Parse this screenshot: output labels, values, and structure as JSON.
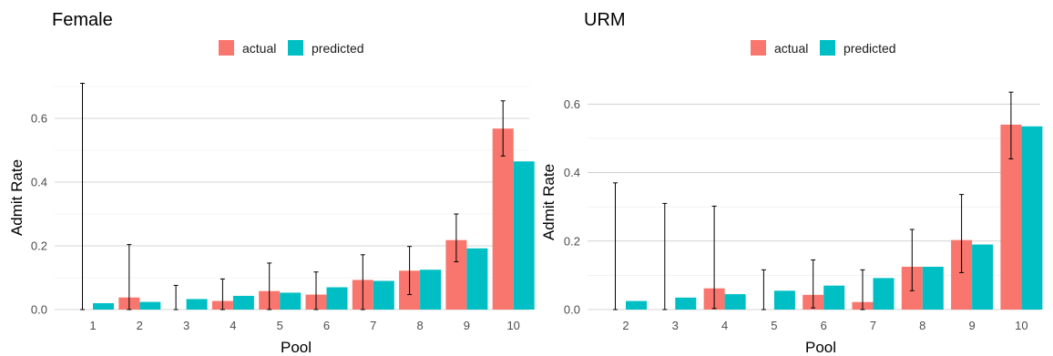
{
  "colors": {
    "actual": "#F8766D",
    "predicted": "#00BFC4"
  },
  "legend": {
    "items": [
      "actual",
      "predicted"
    ]
  },
  "chart_data": [
    {
      "type": "bar",
      "title": "Female",
      "xlabel": "Pool",
      "ylabel": "Admit Rate",
      "ylim": [
        0,
        0.72
      ],
      "y_ticks": [
        0.0,
        0.2,
        0.4,
        0.6
      ],
      "y_tick_labels": [
        "0.0",
        "0.2",
        "0.4",
        "0.6"
      ],
      "grid": true,
      "legend_position": "top",
      "categories": [
        "1",
        "2",
        "3",
        "4",
        "5",
        "6",
        "7",
        "8",
        "9",
        "10"
      ],
      "series": [
        {
          "name": "actual",
          "values": [
            0.0,
            0.038,
            0.0,
            0.027,
            0.058,
            0.047,
            0.093,
            0.122,
            0.218,
            0.568
          ]
        },
        {
          "name": "predicted",
          "values": [
            0.02,
            0.024,
            0.033,
            0.043,
            0.053,
            0.07,
            0.09,
            0.125,
            0.192,
            0.465
          ]
        }
      ],
      "error_bars": {
        "lower": [
          0.0,
          0.0,
          0.0,
          0.0,
          0.0,
          0.0,
          0.0,
          0.047,
          0.15,
          0.482
        ],
        "upper": [
          0.71,
          0.204,
          0.076,
          0.096,
          0.146,
          0.118,
          0.172,
          0.198,
          0.3,
          0.655
        ]
      }
    },
    {
      "type": "bar",
      "title": "URM",
      "xlabel": "Pool",
      "ylabel": "Admit Rate",
      "ylim": [
        0,
        0.67
      ],
      "y_ticks": [
        0.0,
        0.2,
        0.4,
        0.6
      ],
      "y_tick_labels": [
        "0.0",
        "0.2",
        "0.4",
        "0.6"
      ],
      "grid": true,
      "legend_position": "top",
      "categories": [
        "2",
        "3",
        "4",
        "5",
        "6",
        "7",
        "8",
        "9",
        "10"
      ],
      "series": [
        {
          "name": "actual",
          "values": [
            0.0,
            0.0,
            0.062,
            0.0,
            0.043,
            0.022,
            0.125,
            0.203,
            0.54
          ]
        },
        {
          "name": "predicted",
          "values": [
            0.025,
            0.035,
            0.045,
            0.055,
            0.07,
            0.092,
            0.125,
            0.19,
            0.535
          ]
        }
      ],
      "error_bars": {
        "lower": [
          0.0,
          0.0,
          0.003,
          0.0,
          0.005,
          0.0,
          0.055,
          0.108,
          0.44
        ],
        "upper": [
          0.37,
          0.31,
          0.302,
          0.116,
          0.145,
          0.116,
          0.234,
          0.336,
          0.635
        ]
      }
    }
  ]
}
